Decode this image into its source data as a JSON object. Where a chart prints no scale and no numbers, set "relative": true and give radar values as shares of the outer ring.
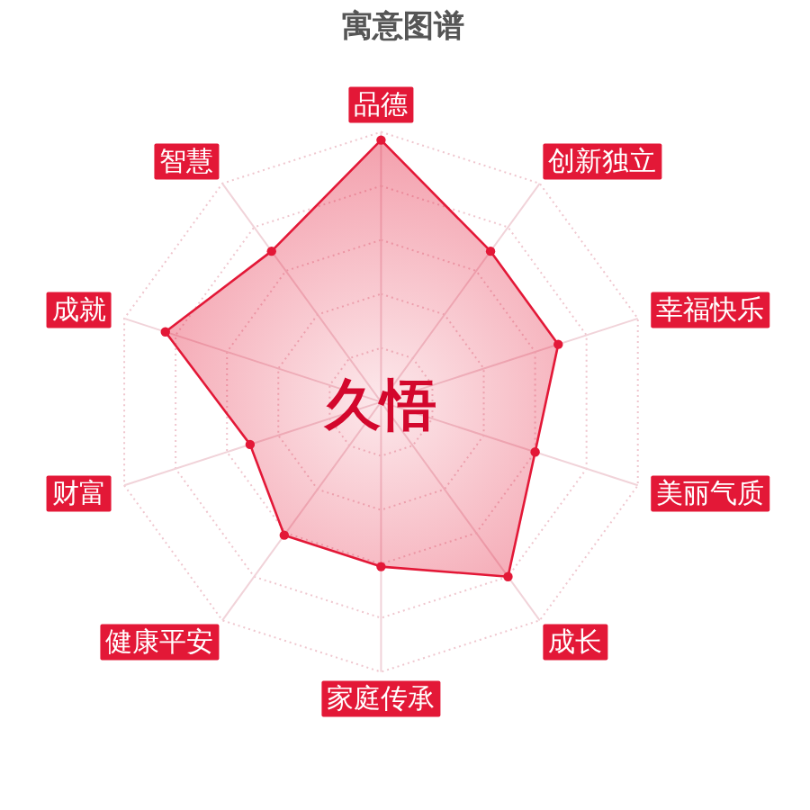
{
  "chart_data": {
    "type": "radar",
    "title": "寓意图谱",
    "categories": [
      "品德",
      "创新独立",
      "幸福快乐",
      "美丽气质",
      "成长",
      "家庭传承",
      "健康平安",
      "财富",
      "成就",
      "智慧"
    ],
    "series": [
      {
        "color": "#e31837",
        "values": [
          0.97,
          0.69,
          0.69,
          0.6,
          0.8,
          0.61,
          0.61,
          0.51,
          0.84,
          0.69
        ]
      }
    ],
    "relative": true,
    "grid": true,
    "marker": "circle",
    "annotations": [
      "久悟"
    ]
  }
}
